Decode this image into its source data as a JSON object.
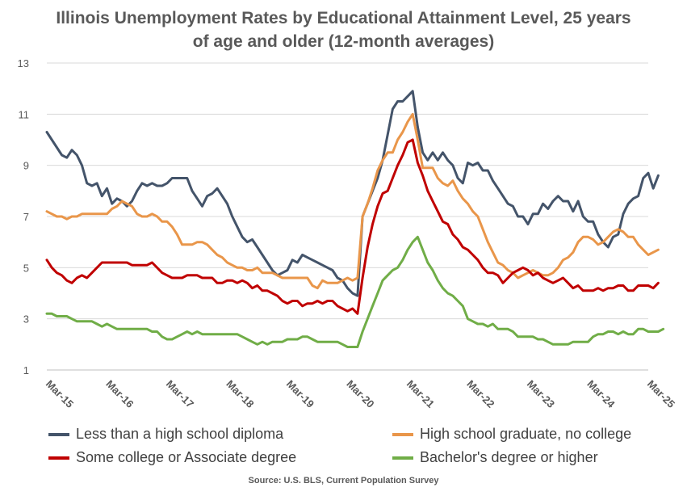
{
  "title_line1": "Illinois Unemployment Rates by Educational Attainment Level, 25 years",
  "title_line2": "of age and older (12-month averages)",
  "source": "Source: U.S. BLS, Current Population Survey",
  "chart_data": {
    "type": "line",
    "title": "Illinois Unemployment Rates by Educational Attainment Level, 25 years of age and older (12-month averages)",
    "xlabel": "",
    "ylabel": "",
    "ylim": [
      1,
      13
    ],
    "yticks": [
      1,
      3,
      5,
      7,
      9,
      11,
      13
    ],
    "grid": "horizontal",
    "legend_position": "bottom",
    "x_start": "Mar-15",
    "x_step": "month",
    "x_ticks": [
      "Mar-15",
      "Mar-16",
      "Mar-17",
      "Mar-18",
      "Mar-19",
      "Mar-20",
      "Mar-21",
      "Mar-22",
      "Mar-23",
      "Mar-24",
      "Mar-25"
    ],
    "series": [
      {
        "name": "Less than a high school diploma",
        "color": "#44546A",
        "values": [
          10.3,
          10.0,
          9.7,
          9.4,
          9.3,
          9.6,
          9.4,
          9.0,
          8.3,
          8.2,
          8.3,
          7.8,
          8.1,
          7.5,
          7.7,
          7.6,
          7.4,
          7.6,
          8.0,
          8.3,
          8.2,
          8.3,
          8.2,
          8.2,
          8.3,
          8.5,
          8.5,
          8.5,
          8.5,
          8.0,
          7.7,
          7.4,
          7.8,
          7.9,
          8.1,
          7.8,
          7.5,
          7.0,
          6.6,
          6.2,
          6.0,
          6.1,
          5.8,
          5.5,
          5.2,
          4.9,
          4.7,
          4.8,
          4.9,
          5.3,
          5.2,
          5.5,
          5.4,
          5.3,
          5.2,
          5.1,
          5.0,
          4.9,
          4.6,
          4.5,
          4.2,
          4.0,
          3.9,
          7.0,
          7.5,
          8.0,
          8.5,
          9.2,
          10.2,
          11.2,
          11.5,
          11.5,
          11.7,
          11.9,
          10.5,
          9.5,
          9.2,
          9.5,
          9.2,
          9.5,
          9.2,
          9.0,
          8.5,
          8.3,
          9.1,
          9.0,
          9.1,
          8.8,
          8.8,
          8.4,
          8.1,
          7.8,
          7.5,
          7.4,
          7.0,
          7.0,
          6.7,
          7.1,
          7.1,
          7.5,
          7.3,
          7.6,
          7.8,
          7.6,
          7.6,
          7.2,
          7.6,
          7.0,
          6.8,
          6.8,
          6.3,
          6.0,
          5.8,
          6.2,
          6.3,
          7.1,
          7.5,
          7.7,
          7.8,
          8.5,
          8.7,
          8.1,
          8.6
        ]
      },
      {
        "name": "High school graduate, no college",
        "color": "#E9964A",
        "values": [
          7.2,
          7.1,
          7.0,
          7.0,
          6.9,
          7.0,
          7.0,
          7.1,
          7.1,
          7.1,
          7.1,
          7.1,
          7.1,
          7.3,
          7.4,
          7.6,
          7.5,
          7.4,
          7.1,
          7.0,
          7.0,
          7.1,
          7.0,
          6.8,
          6.8,
          6.6,
          6.3,
          5.9,
          5.9,
          5.9,
          6.0,
          6.0,
          5.9,
          5.7,
          5.5,
          5.4,
          5.2,
          5.1,
          5.0,
          5.0,
          4.9,
          4.9,
          5.0,
          4.8,
          4.8,
          4.8,
          4.7,
          4.6,
          4.6,
          4.6,
          4.6,
          4.6,
          4.6,
          4.3,
          4.2,
          4.5,
          4.4,
          4.4,
          4.4,
          4.5,
          4.6,
          4.5,
          4.6,
          7.0,
          7.5,
          8.1,
          8.8,
          9.2,
          9.5,
          9.5,
          10.0,
          10.3,
          10.7,
          11.0,
          10.0,
          8.9,
          8.9,
          8.9,
          8.5,
          8.3,
          8.2,
          8.4,
          8.0,
          7.7,
          7.5,
          7.2,
          7.0,
          6.5,
          6.0,
          5.6,
          5.2,
          5.1,
          4.9,
          4.8,
          4.6,
          4.7,
          4.8,
          4.9,
          4.8,
          4.7,
          4.7,
          4.8,
          5.0,
          5.3,
          5.4,
          5.6,
          6.0,
          6.2,
          6.2,
          6.1,
          5.9,
          6.0,
          6.2,
          6.4,
          6.5,
          6.4,
          6.2,
          6.2,
          5.9,
          5.7,
          5.5,
          5.6,
          5.7
        ]
      },
      {
        "name": "Some college or Associate degree",
        "color": "#C00000",
        "values": [
          5.3,
          5.0,
          4.8,
          4.7,
          4.5,
          4.4,
          4.6,
          4.7,
          4.6,
          4.8,
          5.0,
          5.2,
          5.2,
          5.2,
          5.2,
          5.2,
          5.2,
          5.1,
          5.1,
          5.1,
          5.1,
          5.2,
          5.0,
          4.8,
          4.7,
          4.6,
          4.6,
          4.6,
          4.7,
          4.7,
          4.7,
          4.6,
          4.6,
          4.6,
          4.4,
          4.4,
          4.5,
          4.5,
          4.4,
          4.5,
          4.4,
          4.2,
          4.3,
          4.1,
          4.1,
          4.0,
          3.9,
          3.7,
          3.6,
          3.7,
          3.7,
          3.5,
          3.6,
          3.6,
          3.7,
          3.6,
          3.7,
          3.7,
          3.5,
          3.4,
          3.3,
          3.4,
          3.2,
          4.6,
          5.8,
          6.7,
          7.4,
          7.9,
          8.0,
          8.5,
          9.0,
          9.4,
          9.9,
          10.0,
          9.1,
          8.6,
          8.0,
          7.6,
          7.2,
          6.8,
          6.7,
          6.3,
          6.1,
          5.8,
          5.7,
          5.5,
          5.3,
          5.0,
          4.8,
          4.8,
          4.7,
          4.4,
          4.6,
          4.8,
          4.9,
          5.0,
          4.9,
          4.7,
          4.8,
          4.6,
          4.5,
          4.4,
          4.5,
          4.6,
          4.4,
          4.2,
          4.3,
          4.1,
          4.1,
          4.1,
          4.2,
          4.1,
          4.2,
          4.2,
          4.3,
          4.3,
          4.1,
          4.1,
          4.3,
          4.3,
          4.3,
          4.2,
          4.4
        ]
      },
      {
        "name": "Bachelor's degree or higher",
        "color": "#70AD47",
        "values": [
          3.2,
          3.2,
          3.1,
          3.1,
          3.1,
          3.0,
          2.9,
          2.9,
          2.9,
          2.9,
          2.8,
          2.7,
          2.8,
          2.7,
          2.6,
          2.6,
          2.6,
          2.6,
          2.6,
          2.6,
          2.6,
          2.5,
          2.5,
          2.3,
          2.2,
          2.2,
          2.3,
          2.4,
          2.5,
          2.4,
          2.5,
          2.4,
          2.4,
          2.4,
          2.4,
          2.4,
          2.4,
          2.4,
          2.4,
          2.3,
          2.2,
          2.1,
          2.0,
          2.1,
          2.0,
          2.1,
          2.1,
          2.1,
          2.2,
          2.2,
          2.2,
          2.3,
          2.3,
          2.2,
          2.1,
          2.1,
          2.1,
          2.1,
          2.1,
          2.0,
          1.9,
          1.9,
          1.9,
          2.5,
          3.0,
          3.5,
          4.0,
          4.5,
          4.7,
          4.9,
          5.0,
          5.3,
          5.7,
          6.0,
          6.2,
          5.7,
          5.2,
          4.9,
          4.5,
          4.2,
          4.0,
          3.9,
          3.7,
          3.5,
          3.0,
          2.9,
          2.8,
          2.8,
          2.7,
          2.8,
          2.6,
          2.6,
          2.6,
          2.5,
          2.3,
          2.3,
          2.3,
          2.3,
          2.2,
          2.2,
          2.1,
          2.0,
          2.0,
          2.0,
          2.0,
          2.1,
          2.1,
          2.1,
          2.1,
          2.3,
          2.4,
          2.4,
          2.5,
          2.5,
          2.4,
          2.5,
          2.4,
          2.4,
          2.6,
          2.6,
          2.5,
          2.5,
          2.5,
          2.6
        ]
      }
    ]
  }
}
